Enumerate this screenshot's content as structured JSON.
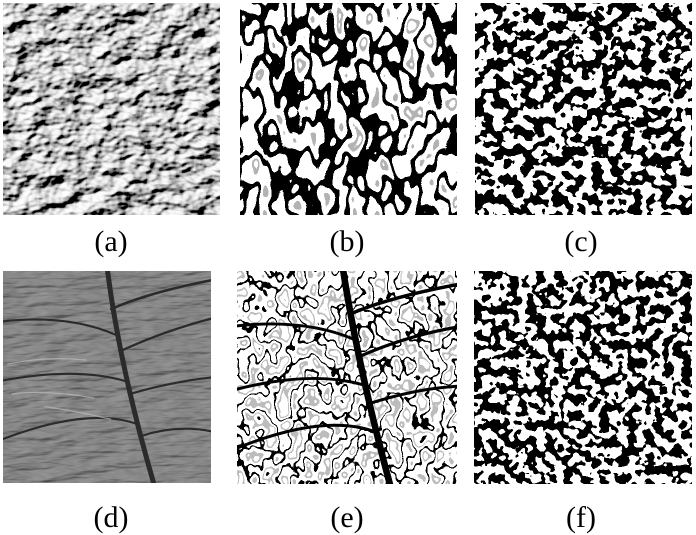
{
  "panels": [
    {
      "id": "a",
      "caption": "(a)",
      "kind": "gray-texture"
    },
    {
      "id": "b",
      "caption": "(b)",
      "kind": "edge-map"
    },
    {
      "id": "c",
      "caption": "(c)",
      "kind": "binary-blobs"
    },
    {
      "id": "d",
      "caption": "(d)",
      "kind": "gray-leaf"
    },
    {
      "id": "e",
      "caption": "(e)",
      "kind": "edge-leaf"
    },
    {
      "id": "f",
      "caption": "(f)",
      "kind": "binary-blobs"
    }
  ]
}
